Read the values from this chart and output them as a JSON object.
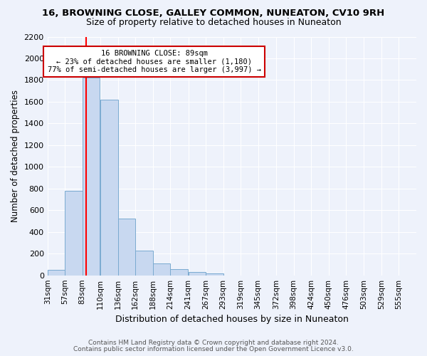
{
  "title": "16, BROWNING CLOSE, GALLEY COMMON, NUNEATON, CV10 9RH",
  "subtitle": "Size of property relative to detached houses in Nuneaton",
  "xlabel": "Distribution of detached houses by size in Nuneaton",
  "ylabel": "Number of detached properties",
  "footer1": "Contains HM Land Registry data © Crown copyright and database right 2024.",
  "footer2": "Contains public sector information licensed under the Open Government Licence v3.0.",
  "bins": [
    "31sqm",
    "57sqm",
    "83sqm",
    "110sqm",
    "136sqm",
    "162sqm",
    "188sqm",
    "214sqm",
    "241sqm",
    "267sqm",
    "293sqm",
    "319sqm",
    "345sqm",
    "372sqm",
    "398sqm",
    "424sqm",
    "450sqm",
    "476sqm",
    "503sqm",
    "529sqm",
    "555sqm"
  ],
  "values": [
    50,
    780,
    1820,
    1620,
    520,
    230,
    110,
    55,
    30,
    20,
    0,
    0,
    0,
    0,
    0,
    0,
    0,
    0,
    0,
    0,
    0
  ],
  "bar_color": "#c8d8f0",
  "bar_edge_color": "#7aaad0",
  "red_line_x": 89,
  "bin_edges_num": [
    31,
    57,
    83,
    110,
    136,
    162,
    188,
    214,
    241,
    267,
    293,
    319,
    345,
    372,
    398,
    424,
    450,
    476,
    503,
    529,
    555
  ],
  "bin_width": 26,
  "annotation_line1": "16 BROWNING CLOSE: 89sqm",
  "annotation_line2": "← 23% of detached houses are smaller (1,180)",
  "annotation_line3": "77% of semi-detached houses are larger (3,997) →",
  "annotation_box_facecolor": "#ffffff",
  "annotation_box_edgecolor": "#cc0000",
  "ylim": [
    0,
    2200
  ],
  "yticks": [
    0,
    200,
    400,
    600,
    800,
    1000,
    1200,
    1400,
    1600,
    1800,
    2000,
    2200
  ],
  "background_color": "#eef2fb",
  "grid_color": "#ffffff",
  "title_fontsize": 9.5,
  "subtitle_fontsize": 9,
  "ylabel_fontsize": 8.5,
  "xlabel_fontsize": 9,
  "tick_fontsize": 8,
  "xtick_fontsize": 7.5,
  "footer_fontsize": 6.5
}
